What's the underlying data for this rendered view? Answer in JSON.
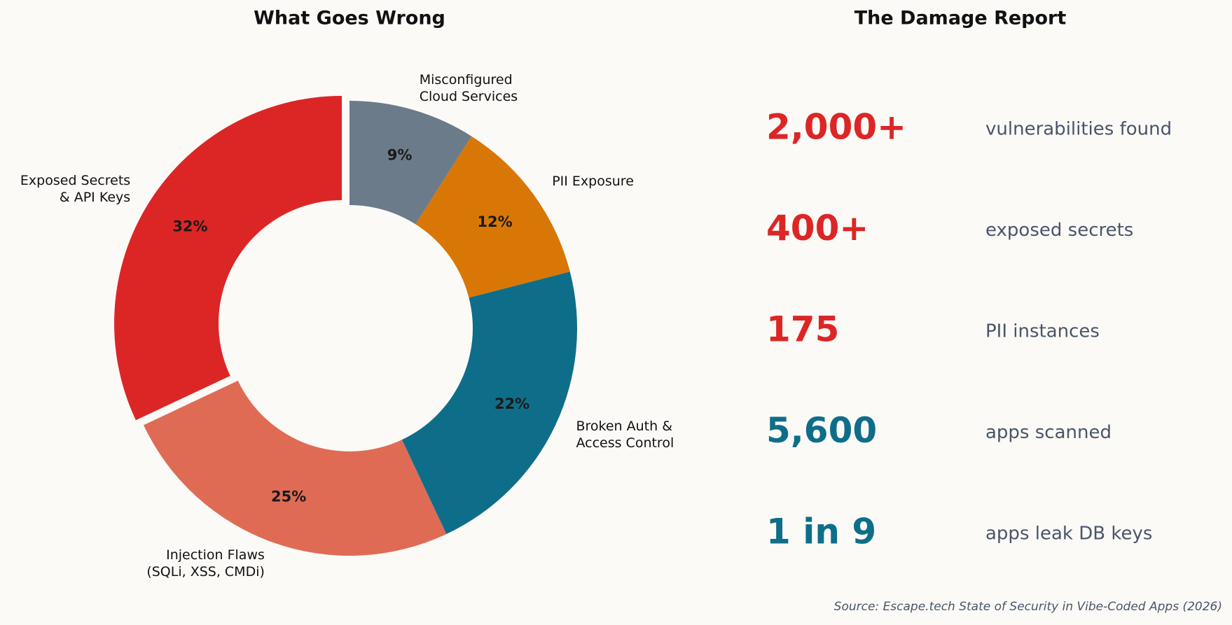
{
  "chart_data": {
    "type": "donut",
    "title": "What Goes Wrong",
    "categories": [
      "Exposed Secrets\n& API Keys",
      "Injection Flaws\n(SQLi, XSS, CMDi)",
      "Broken Auth &\nAccess Control",
      "PII Exposure",
      "Misconfigured\nCloud Services"
    ],
    "values": [
      32,
      25,
      22,
      12,
      9
    ],
    "value_labels": [
      "32%",
      "25%",
      "22%",
      "12%",
      "9%"
    ],
    "colors": [
      "#dc2626",
      "#e06b55",
      "#0e6e8a",
      "#d97706",
      "#6b7b8a"
    ],
    "explode": [
      0.04,
      0,
      0,
      0,
      0
    ],
    "start_angle": 90,
    "direction": "counterclockwise"
  },
  "stats": {
    "title": "The Damage Report",
    "items": [
      {
        "value": "2,000+",
        "label": "vulnerabilities found",
        "color": "#dc2626"
      },
      {
        "value": "400+",
        "label": "exposed secrets",
        "color": "#dc2626"
      },
      {
        "value": "175",
        "label": "PII instances",
        "color": "#dc2626"
      },
      {
        "value": "5,600",
        "label": "apps scanned",
        "color": "#0e6e8a"
      },
      {
        "value": "1 in 9",
        "label": "apps leak DB keys",
        "color": "#0e6e8a"
      }
    ]
  },
  "source": "Source: Escape.tech State of Security in Vibe-Coded Apps (2026)"
}
